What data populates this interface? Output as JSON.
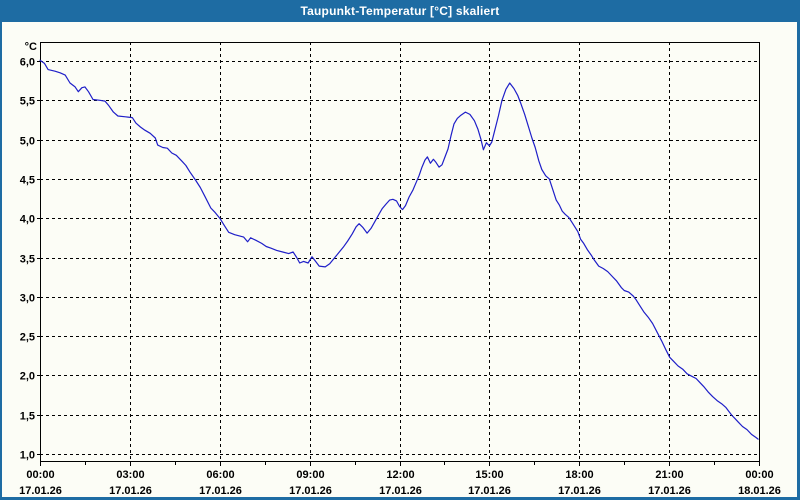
{
  "window": {
    "title": "Taupunkt-Temperatur [°C] skaliert"
  },
  "colors": {
    "titlebar_bg": "#1E6CA3",
    "window_border": "#1E6CA3",
    "background": "#FCFDF6",
    "line": "#1F1FC8",
    "grid": "#000000",
    "text": "#000000"
  },
  "chart_data": {
    "type": "line",
    "title": "Taupunkt-Temperatur [°C] skaliert",
    "ylabel": "°C",
    "xlabel": "",
    "grid": "dashed",
    "legend": "none",
    "ylim": [
      1.0,
      6.0
    ],
    "x_range_hours": [
      0,
      24
    ],
    "y_ticks": [
      {
        "value": 6.0,
        "label": "6,0"
      },
      {
        "value": 5.5,
        "label": "5,5"
      },
      {
        "value": 5.0,
        "label": "5,0"
      },
      {
        "value": 4.5,
        "label": "4,5"
      },
      {
        "value": 4.0,
        "label": "4,0"
      },
      {
        "value": 3.5,
        "label": "3,5"
      },
      {
        "value": 3.0,
        "label": "3,0"
      },
      {
        "value": 2.5,
        "label": "2,5"
      },
      {
        "value": 2.0,
        "label": "2,0"
      },
      {
        "value": 1.5,
        "label": "1,5"
      },
      {
        "value": 1.0,
        "label": "1,0"
      }
    ],
    "x_ticks": [
      {
        "hour": 0,
        "time": "00:00",
        "date": "17.01.26"
      },
      {
        "hour": 3,
        "time": "03:00",
        "date": "17.01.26"
      },
      {
        "hour": 6,
        "time": "06:00",
        "date": "17.01.26"
      },
      {
        "hour": 9,
        "time": "09:00",
        "date": "17.01.26"
      },
      {
        "hour": 12,
        "time": "12:00",
        "date": "17.01.26"
      },
      {
        "hour": 15,
        "time": "15:00",
        "date": "17.01.26"
      },
      {
        "hour": 18,
        "time": "18:00",
        "date": "17.01.26"
      },
      {
        "hour": 21,
        "time": "21:00",
        "date": "17.01.26"
      },
      {
        "hour": 24,
        "time": "00:00",
        "date": "18.01.26"
      }
    ],
    "minor_x_tick_interval_hours": 1.5,
    "series": [
      {
        "name": "Taupunkt-Temperatur",
        "unit": "°C",
        "points": [
          [
            0,
            6.01
          ],
          [
            0.15,
            5.97
          ],
          [
            0.27,
            5.89
          ],
          [
            0.5,
            5.87
          ],
          [
            0.67,
            5.85
          ],
          [
            0.84,
            5.82
          ],
          [
            1,
            5.72
          ],
          [
            1.17,
            5.67
          ],
          [
            1.28,
            5.61
          ],
          [
            1.4,
            5.66
          ],
          [
            1.5,
            5.67
          ],
          [
            1.62,
            5.61
          ],
          [
            1.77,
            5.51
          ],
          [
            2,
            5.5
          ],
          [
            2.17,
            5.49
          ],
          [
            2.3,
            5.43
          ],
          [
            2.45,
            5.35
          ],
          [
            2.6,
            5.3
          ],
          [
            2.85,
            5.29
          ],
          [
            3.08,
            5.28
          ],
          [
            3.2,
            5.21
          ],
          [
            3.35,
            5.16
          ],
          [
            3.5,
            5.12
          ],
          [
            3.68,
            5.08
          ],
          [
            3.85,
            5.02
          ],
          [
            3.93,
            4.93
          ],
          [
            4.1,
            4.9
          ],
          [
            4.25,
            4.89
          ],
          [
            4.4,
            4.83
          ],
          [
            4.55,
            4.8
          ],
          [
            4.75,
            4.72
          ],
          [
            4.87,
            4.67
          ],
          [
            5,
            4.59
          ],
          [
            5.2,
            4.48
          ],
          [
            5.35,
            4.39
          ],
          [
            5.5,
            4.28
          ],
          [
            5.7,
            4.13
          ],
          [
            5.85,
            4.07
          ],
          [
            6,
            4
          ],
          [
            6.15,
            3.91
          ],
          [
            6.3,
            3.82
          ],
          [
            6.5,
            3.79
          ],
          [
            6.8,
            3.76
          ],
          [
            6.93,
            3.7
          ],
          [
            7.03,
            3.75
          ],
          [
            7.2,
            3.72
          ],
          [
            7.4,
            3.68
          ],
          [
            7.55,
            3.64
          ],
          [
            7.7,
            3.62
          ],
          [
            7.9,
            3.59
          ],
          [
            8.1,
            3.57
          ],
          [
            8.3,
            3.55
          ],
          [
            8.45,
            3.57
          ],
          [
            8.57,
            3.5
          ],
          [
            8.67,
            3.43
          ],
          [
            8.8,
            3.45
          ],
          [
            8.95,
            3.43
          ],
          [
            9.08,
            3.51
          ],
          [
            9.2,
            3.45
          ],
          [
            9.32,
            3.39
          ],
          [
            9.52,
            3.38
          ],
          [
            9.67,
            3.42
          ],
          [
            9.82,
            3.49
          ],
          [
            9.97,
            3.56
          ],
          [
            10.12,
            3.63
          ],
          [
            10.27,
            3.71
          ],
          [
            10.42,
            3.8
          ],
          [
            10.55,
            3.89
          ],
          [
            10.65,
            3.93
          ],
          [
            10.78,
            3.88
          ],
          [
            10.92,
            3.81
          ],
          [
            11.05,
            3.87
          ],
          [
            11.17,
            3.95
          ],
          [
            11.3,
            4.04
          ],
          [
            11.42,
            4.12
          ],
          [
            11.55,
            4.18
          ],
          [
            11.67,
            4.23
          ],
          [
            11.78,
            4.24
          ],
          [
            11.9,
            4.22
          ],
          [
            12,
            4.15
          ],
          [
            12.1,
            4.11
          ],
          [
            12.2,
            4.16
          ],
          [
            12.32,
            4.27
          ],
          [
            12.45,
            4.36
          ],
          [
            12.55,
            4.45
          ],
          [
            12.65,
            4.54
          ],
          [
            12.75,
            4.65
          ],
          [
            12.85,
            4.74
          ],
          [
            12.93,
            4.78
          ],
          [
            13.03,
            4.7
          ],
          [
            13.13,
            4.75
          ],
          [
            13.22,
            4.71
          ],
          [
            13.32,
            4.65
          ],
          [
            13.42,
            4.68
          ],
          [
            13.52,
            4.78
          ],
          [
            13.62,
            4.88
          ],
          [
            13.72,
            5.05
          ],
          [
            13.82,
            5.2
          ],
          [
            13.93,
            5.27
          ],
          [
            14.05,
            5.31
          ],
          [
            14.2,
            5.35
          ],
          [
            14.35,
            5.32
          ],
          [
            14.5,
            5.24
          ],
          [
            14.62,
            5.13
          ],
          [
            14.72,
            5
          ],
          [
            14.8,
            4.87
          ],
          [
            14.9,
            4.96
          ],
          [
            15,
            4.92
          ],
          [
            15.08,
            4.97
          ],
          [
            15.18,
            5.12
          ],
          [
            15.3,
            5.3
          ],
          [
            15.42,
            5.5
          ],
          [
            15.55,
            5.64
          ],
          [
            15.68,
            5.72
          ],
          [
            15.82,
            5.65
          ],
          [
            15.95,
            5.56
          ],
          [
            16.05,
            5.46
          ],
          [
            16.18,
            5.32
          ],
          [
            16.3,
            5.17
          ],
          [
            16.42,
            5.02
          ],
          [
            16.53,
            4.9
          ],
          [
            16.65,
            4.73
          ],
          [
            16.75,
            4.62
          ],
          [
            16.88,
            4.54
          ],
          [
            17,
            4.5
          ],
          [
            17.12,
            4.36
          ],
          [
            17.23,
            4.23
          ],
          [
            17.33,
            4.17
          ],
          [
            17.43,
            4.09
          ],
          [
            17.53,
            4.05
          ],
          [
            17.65,
            4.01
          ],
          [
            17.75,
            3.95
          ],
          [
            17.85,
            3.89
          ],
          [
            17.95,
            3.83
          ],
          [
            18.05,
            3.73
          ],
          [
            18.15,
            3.68
          ],
          [
            18.27,
            3.6
          ],
          [
            18.4,
            3.53
          ],
          [
            18.5,
            3.47
          ],
          [
            18.65,
            3.39
          ],
          [
            18.8,
            3.36
          ],
          [
            18.95,
            3.32
          ],
          [
            19.1,
            3.26
          ],
          [
            19.25,
            3.2
          ],
          [
            19.4,
            3.12
          ],
          [
            19.5,
            3.08
          ],
          [
            19.65,
            3.06
          ],
          [
            19.8,
            3.01
          ],
          [
            19.9,
            2.96
          ],
          [
            20,
            2.9
          ],
          [
            20.15,
            2.81
          ],
          [
            20.3,
            2.74
          ],
          [
            20.45,
            2.66
          ],
          [
            20.6,
            2.55
          ],
          [
            20.75,
            2.44
          ],
          [
            20.9,
            2.32
          ],
          [
            21.02,
            2.23
          ],
          [
            21.15,
            2.18
          ],
          [
            21.3,
            2.12
          ],
          [
            21.45,
            2.08
          ],
          [
            21.6,
            2.02
          ],
          [
            21.75,
            1.99
          ],
          [
            21.9,
            1.96
          ],
          [
            22,
            1.92
          ],
          [
            22.15,
            1.86
          ],
          [
            22.3,
            1.79
          ],
          [
            22.45,
            1.73
          ],
          [
            22.6,
            1.68
          ],
          [
            22.75,
            1.64
          ],
          [
            22.9,
            1.59
          ],
          [
            23,
            1.54
          ],
          [
            23.1,
            1.49
          ],
          [
            23.2,
            1.45
          ],
          [
            23.3,
            1.41
          ],
          [
            23.45,
            1.35
          ],
          [
            23.6,
            1.31
          ],
          [
            23.75,
            1.25
          ],
          [
            23.9,
            1.21
          ],
          [
            23.97,
            1.19
          ]
        ]
      }
    ]
  }
}
